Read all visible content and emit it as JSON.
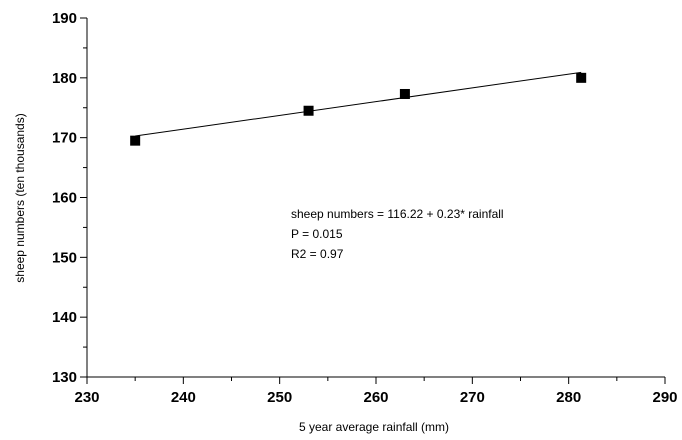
{
  "chart_data": {
    "type": "scatter",
    "xlabel": "5 year average rainfall (mm)",
    "ylabel": "sheep numbers (ten thousands)",
    "xlim": [
      230,
      290
    ],
    "ylim": [
      130,
      190
    ],
    "xticks": [
      230,
      240,
      250,
      260,
      270,
      280,
      290
    ],
    "yticks": [
      130,
      140,
      150,
      160,
      170,
      180,
      190
    ],
    "x_minor_step": 5,
    "y_minor_step": 5,
    "grid": false,
    "marker": "square",
    "marker_color": "#000000",
    "points": [
      {
        "x": 235,
        "y": 169.5
      },
      {
        "x": 253,
        "y": 174.5
      },
      {
        "x": 263,
        "y": 177.3
      },
      {
        "x": 281.3,
        "y": 180
      }
    ],
    "fit_line": {
      "intercept": 116.22,
      "slope": 0.23,
      "x_start": 235,
      "x_end": 281.3
    },
    "annotations": [
      "sheep numbers = 116.22 + 0.23* rainfall",
      "P = 0.015",
      "R2 = 0.97"
    ]
  }
}
